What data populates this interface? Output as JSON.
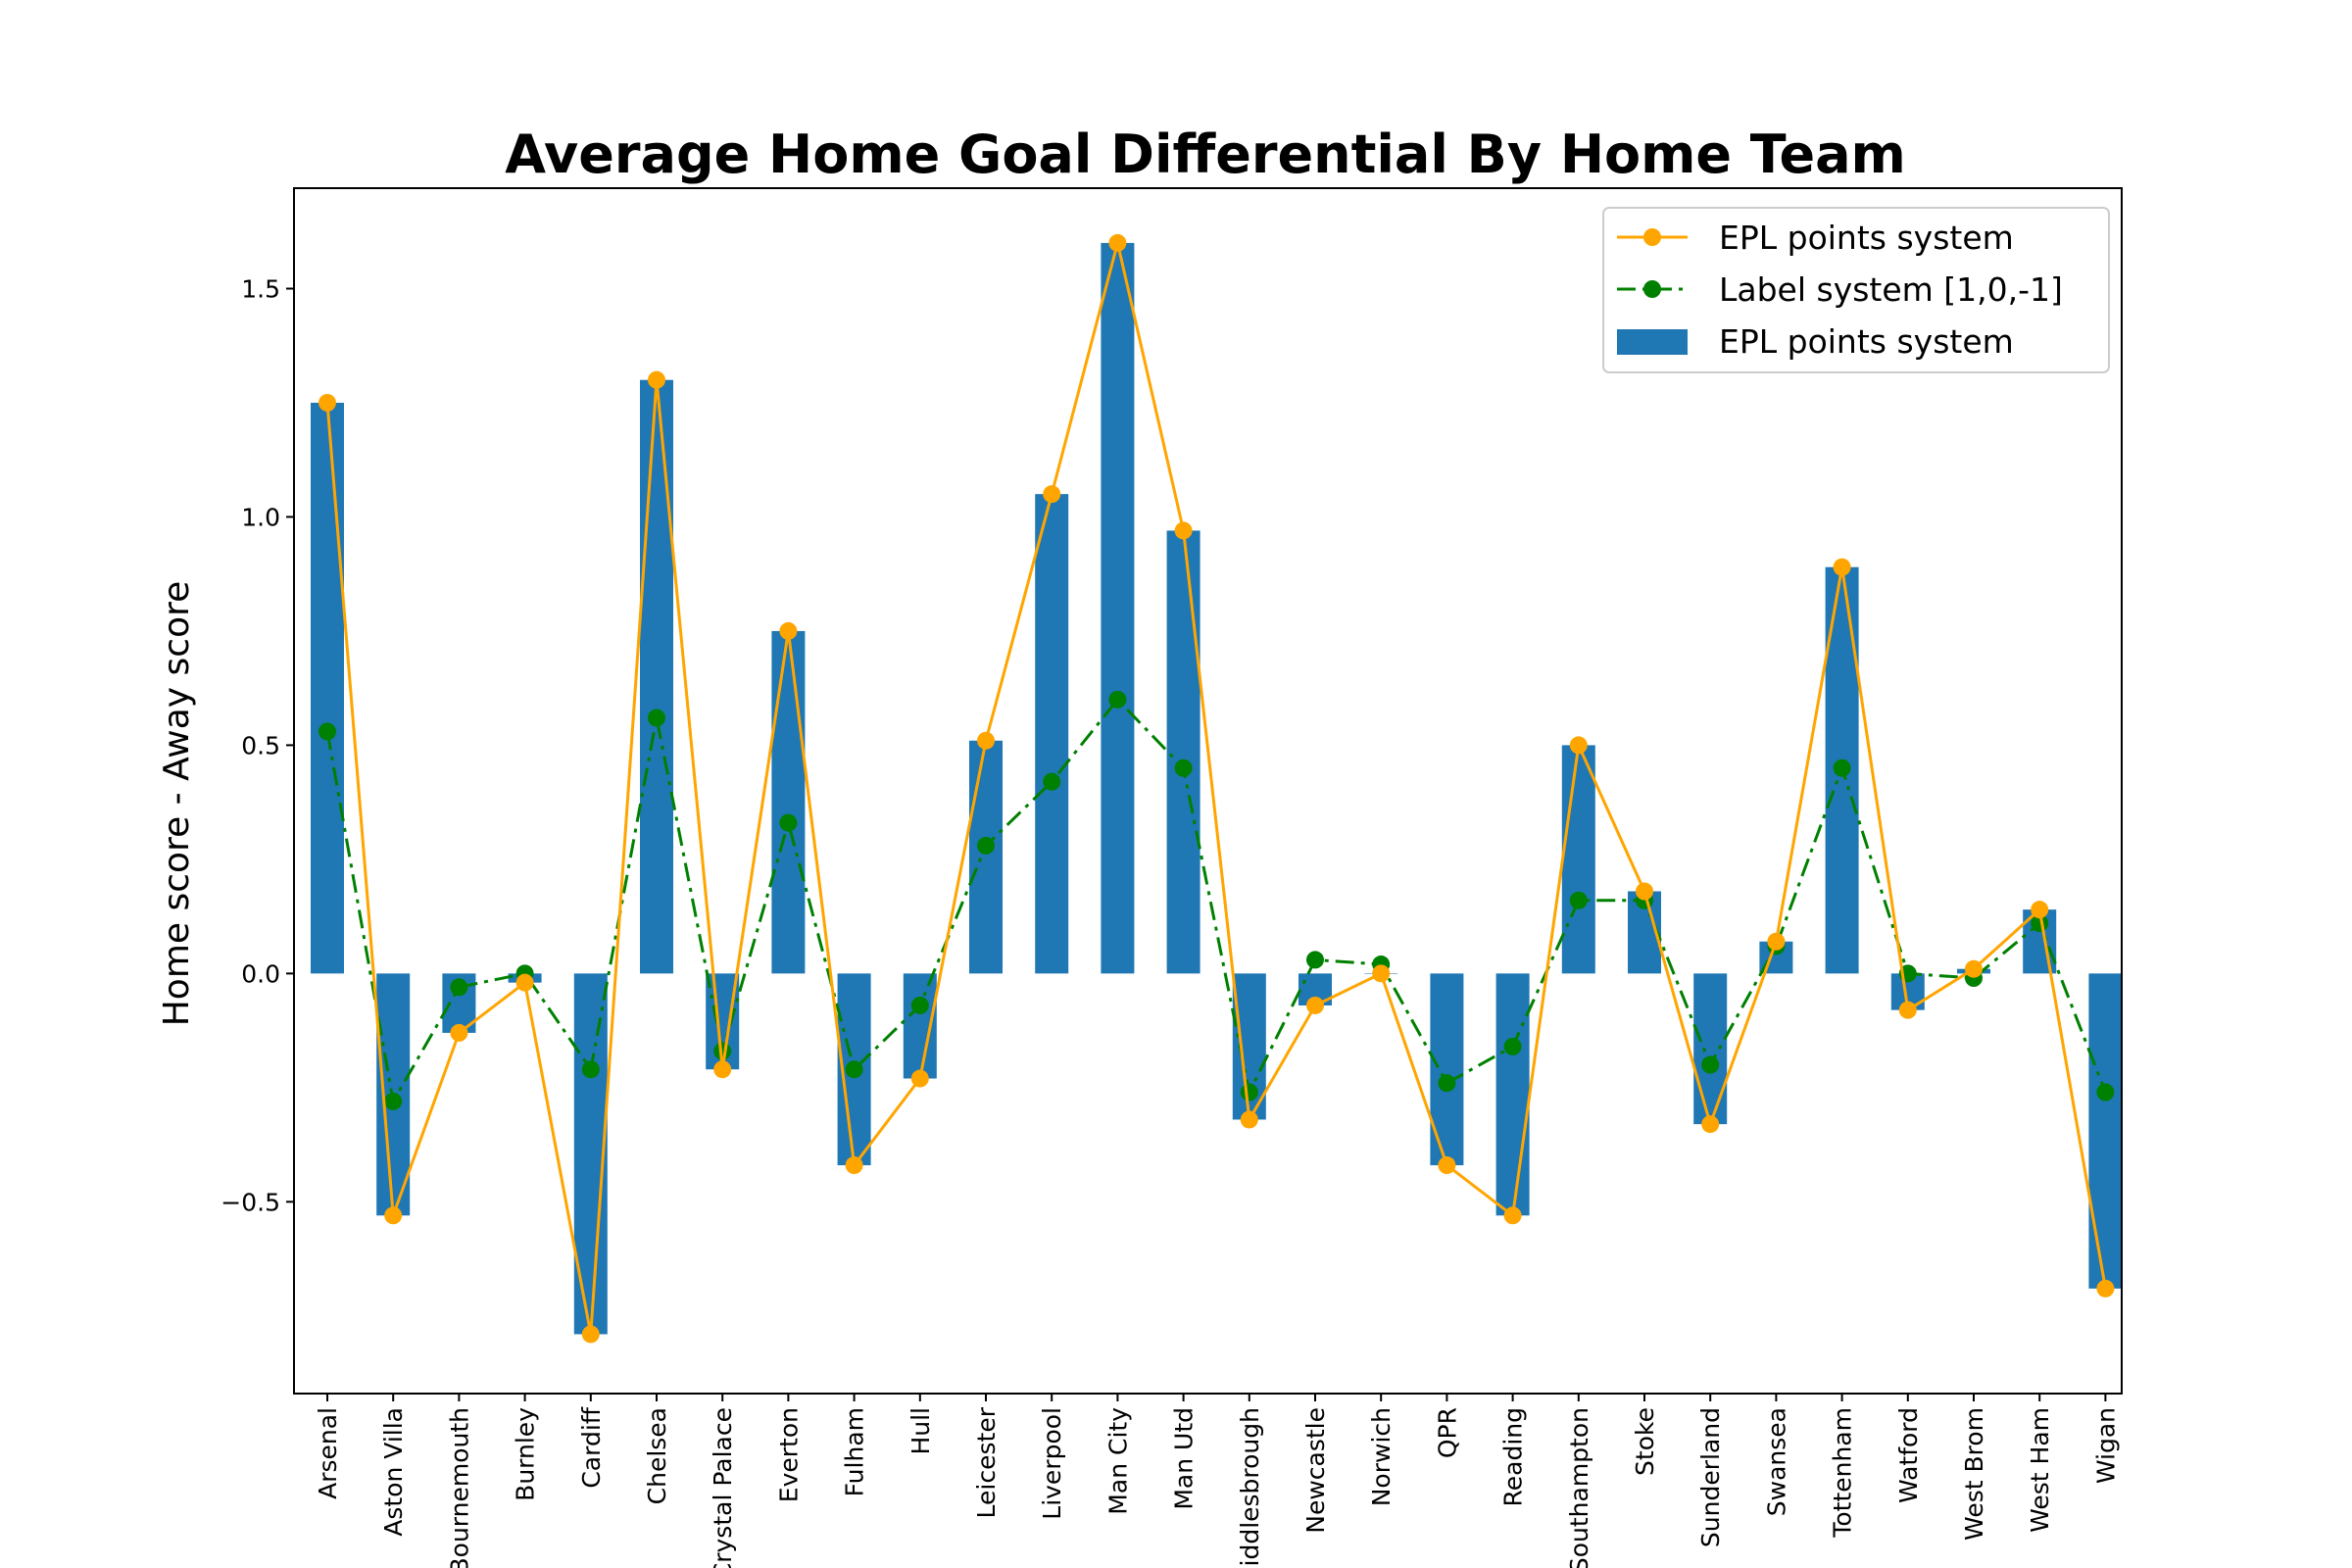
{
  "chart_data": {
    "type": "bar",
    "title": "Average Home Goal Differential By Home Team",
    "xlabel": "",
    "ylabel": "Home score - Away score",
    "ylim": [
      -0.92,
      1.72
    ],
    "yticks": [
      -0.5,
      0.0,
      0.5,
      1.0,
      1.5
    ],
    "ytick_labels": [
      "−0.5",
      "0.0",
      "0.5",
      "1.0",
      "1.5"
    ],
    "grid": false,
    "legend_position": "top-right",
    "categories": [
      "Arsenal",
      "Aston Villa",
      "Bournemouth",
      "Burnley",
      "Cardiff",
      "Chelsea",
      "Crystal Palace",
      "Everton",
      "Fulham",
      "Hull",
      "Leicester",
      "Liverpool",
      "Man City",
      "Man Utd",
      "Middlesbrough",
      "Newcastle",
      "Norwich",
      "QPR",
      "Reading",
      "Southampton",
      "Stoke",
      "Sunderland",
      "Swansea",
      "Tottenham",
      "Watford",
      "West Brom",
      "West Ham",
      "Wigan"
    ],
    "series": [
      {
        "name": "EPL points system",
        "kind": "bar",
        "color": "#1f77b4",
        "values": [
          1.25,
          -0.53,
          -0.13,
          -0.02,
          -0.79,
          1.3,
          -0.21,
          0.75,
          -0.42,
          -0.23,
          0.51,
          1.05,
          1.6,
          0.97,
          -0.32,
          -0.07,
          0.0,
          -0.42,
          -0.53,
          0.5,
          0.18,
          -0.33,
          0.07,
          0.89,
          -0.08,
          0.01,
          0.14,
          -0.69
        ]
      },
      {
        "name": "EPL points system",
        "kind": "line",
        "style": "solid",
        "color": "#ffa500",
        "values": [
          1.25,
          -0.53,
          -0.13,
          -0.02,
          -0.79,
          1.3,
          -0.21,
          0.75,
          -0.42,
          -0.23,
          0.51,
          1.05,
          1.6,
          0.97,
          -0.32,
          -0.07,
          0.0,
          -0.42,
          -0.53,
          0.5,
          0.18,
          -0.33,
          0.07,
          0.89,
          -0.08,
          0.01,
          0.14,
          -0.69
        ]
      },
      {
        "name": "Label system [1,0,-1]",
        "kind": "line",
        "style": "dashdot",
        "color": "#008000",
        "values": [
          0.53,
          -0.28,
          -0.03,
          0.0,
          -0.21,
          0.56,
          -0.17,
          0.33,
          -0.21,
          -0.07,
          0.28,
          0.42,
          0.6,
          0.45,
          -0.26,
          0.03,
          0.02,
          -0.24,
          -0.16,
          0.16,
          0.16,
          -0.2,
          0.06,
          0.45,
          0.0,
          -0.01,
          0.11,
          -0.26
        ]
      }
    ]
  }
}
